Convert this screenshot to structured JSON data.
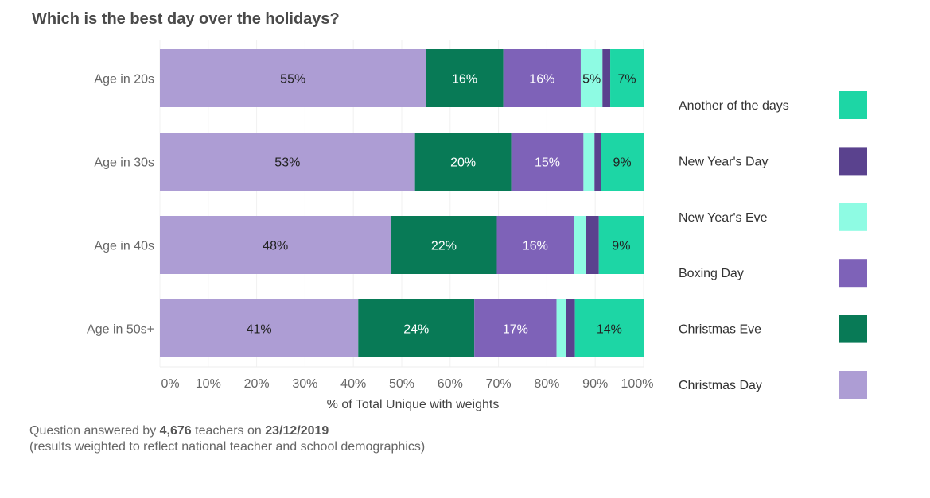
{
  "title": "Which is the best day over the holidays?",
  "colors": {
    "Christmas Day": "#ad9dd4",
    "Christmas Eve": "#087a56",
    "Boxing Day": "#7e62b8",
    "New Year's Eve": "#8efbe3",
    "New Year's Day": "#5a428e",
    "Another of the days": "#1dd6a5"
  },
  "chart_data": {
    "type": "bar",
    "orientation": "horizontal",
    "stacked": true,
    "categories": [
      "Age in 20s",
      "Age in 30s",
      "Age in 40s",
      "Age in 50s+"
    ],
    "series": [
      {
        "name": "Christmas Day",
        "values": [
          55,
          53,
          48,
          41
        ],
        "labels": [
          "55%",
          "53%",
          "48%",
          "41%"
        ]
      },
      {
        "name": "Christmas Eve",
        "values": [
          16,
          20,
          22,
          24
        ],
        "labels": [
          "16%",
          "20%",
          "22%",
          "24%"
        ]
      },
      {
        "name": "Boxing Day",
        "values": [
          16,
          15,
          16,
          17
        ],
        "labels": [
          "16%",
          "15%",
          "16%",
          "17%"
        ]
      },
      {
        "name": "New Year's Eve",
        "values": [
          4.5,
          2.3,
          2.6,
          1.9
        ],
        "labels": [
          "5%",
          "",
          "",
          ""
        ]
      },
      {
        "name": "New Year's Day",
        "values": [
          1.6,
          1.3,
          2.6,
          1.9
        ],
        "labels": [
          "",
          "",
          "",
          ""
        ]
      },
      {
        "name": "Another of the days",
        "values": [
          6.9,
          8.9,
          9.3,
          14.2
        ],
        "labels": [
          "7%",
          "9%",
          "9%",
          "14%"
        ]
      }
    ],
    "xlabel": "% of Total Unique with weights",
    "xlim": [
      0,
      100
    ],
    "xticks": [
      "0%",
      "10%",
      "20%",
      "30%",
      "40%",
      "50%",
      "60%",
      "70%",
      "80%",
      "90%",
      "100%"
    ],
    "grid": true,
    "legend": {
      "placement": "right",
      "order": [
        "Another of the days",
        "New Year's Day",
        "New Year's Eve",
        "Boxing Day",
        "Christmas Eve",
        "Christmas Day"
      ]
    }
  },
  "footnote": {
    "prefix": "Question answered by ",
    "count": "4,676",
    "middle": " teachers on ",
    "date": "23/12/2019",
    "line2": "(results weighted to reflect national teacher and school demographics)"
  }
}
